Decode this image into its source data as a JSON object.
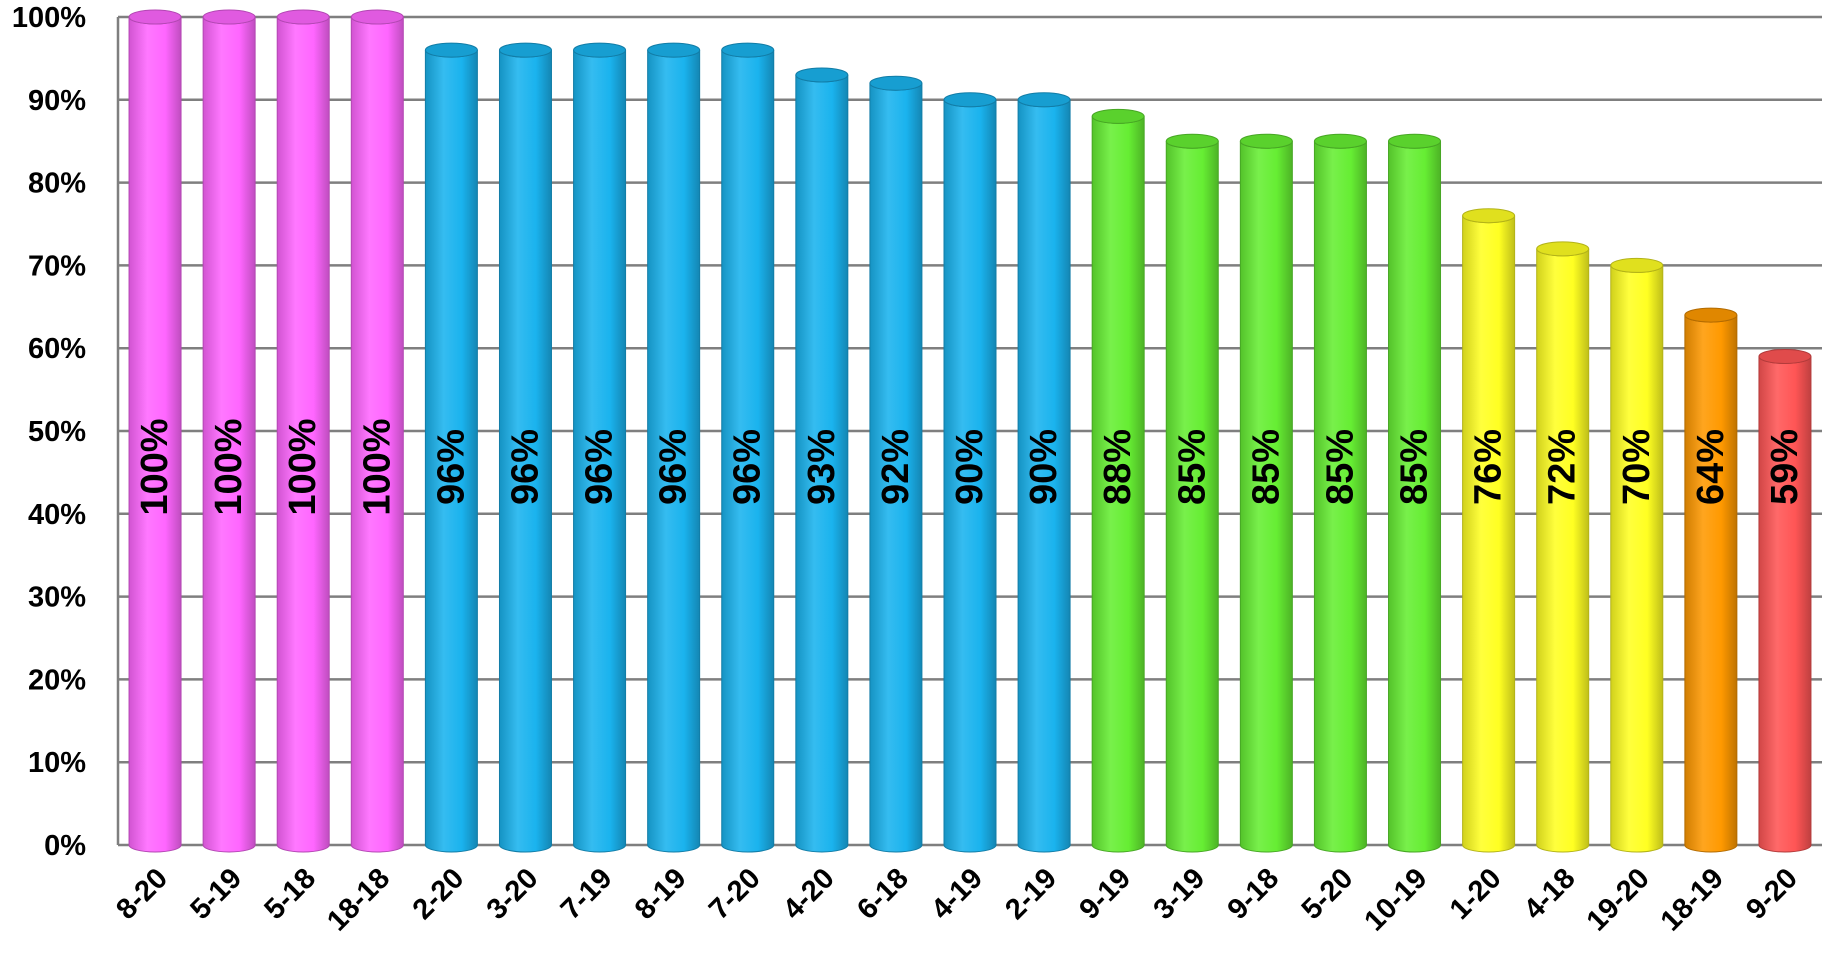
{
  "chart_data": {
    "type": "bar",
    "categories": [
      "8-20",
      "5-19",
      "5-18",
      "18-18",
      "2-20",
      "3-20",
      "7-19",
      "8-19",
      "7-20",
      "4-20",
      "6-18",
      "4-19",
      "2-19",
      "9-19",
      "3-19",
      "9-18",
      "5-20",
      "10-19",
      "1-20",
      "4-18",
      "19-20",
      "18-19",
      "9-20"
    ],
    "values": [
      100,
      100,
      100,
      100,
      96,
      96,
      96,
      96,
      96,
      93,
      92,
      90,
      90,
      88,
      85,
      85,
      85,
      85,
      76,
      72,
      70,
      64,
      59
    ],
    "data_labels": [
      "100%",
      "100%",
      "100%",
      "100%",
      "96%",
      "96%",
      "96%",
      "96%",
      "96%",
      "93%",
      "92%",
      "90%",
      "90%",
      "88%",
      "85%",
      "85%",
      "85%",
      "85%",
      "76%",
      "72%",
      "70%",
      "64%",
      "59%"
    ],
    "ylim": [
      0,
      100
    ],
    "ytick_labels": [
      "0%",
      "10%",
      "20%",
      "30%",
      "40%",
      "50%",
      "60%",
      "70%",
      "80%",
      "90%",
      "100%"
    ],
    "grid": true,
    "legend": "none",
    "bar_style": "3d-cylinder",
    "colors": {
      "magenta": "#ff66ff",
      "blue": "#1ab3ee",
      "green": "#66ee33",
      "yellow": "#ffff22",
      "orange": "#ff9900",
      "red": "#ff5555"
    },
    "bar_colors": [
      "magenta",
      "magenta",
      "magenta",
      "magenta",
      "blue",
      "blue",
      "blue",
      "blue",
      "blue",
      "blue",
      "blue",
      "blue",
      "blue",
      "green",
      "green",
      "green",
      "green",
      "green",
      "yellow",
      "yellow",
      "yellow",
      "orange",
      "red"
    ]
  }
}
